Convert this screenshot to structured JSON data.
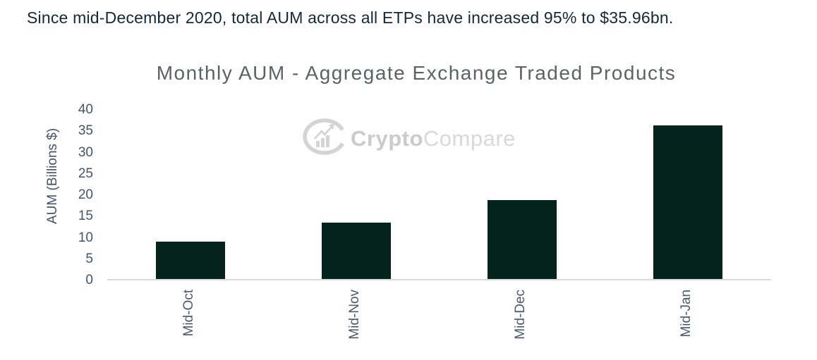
{
  "page": {
    "headline": "Since mid-December 2020, total AUM across all ETPs have increased 95% to $35.96bn."
  },
  "watermark": {
    "brand_bold": "Crypto",
    "brand_regular": "Compare"
  },
  "chart_data": {
    "type": "bar",
    "title": "Monthly AUM - Aggregate Exchange Traded Products",
    "categories": [
      "Mid-Oct",
      "Mid-Nov",
      "Mid-Dec",
      "Mid-Jan"
    ],
    "values": [
      8.7,
      13.3,
      18.44,
      35.96
    ],
    "xlabel": "",
    "ylabel": "AUM (Billions $)",
    "ylim": [
      0,
      40
    ],
    "yticks": [
      0,
      5,
      10,
      15,
      20,
      25,
      30,
      35,
      40
    ],
    "grid": false,
    "legend": "none",
    "colors": {
      "bar": "#03231c",
      "axis_line": "#d9d9d9",
      "tick_labels": "#44546a",
      "title": "#5e6166",
      "headline": "#14283a",
      "watermark": "#d2d2d2"
    }
  }
}
